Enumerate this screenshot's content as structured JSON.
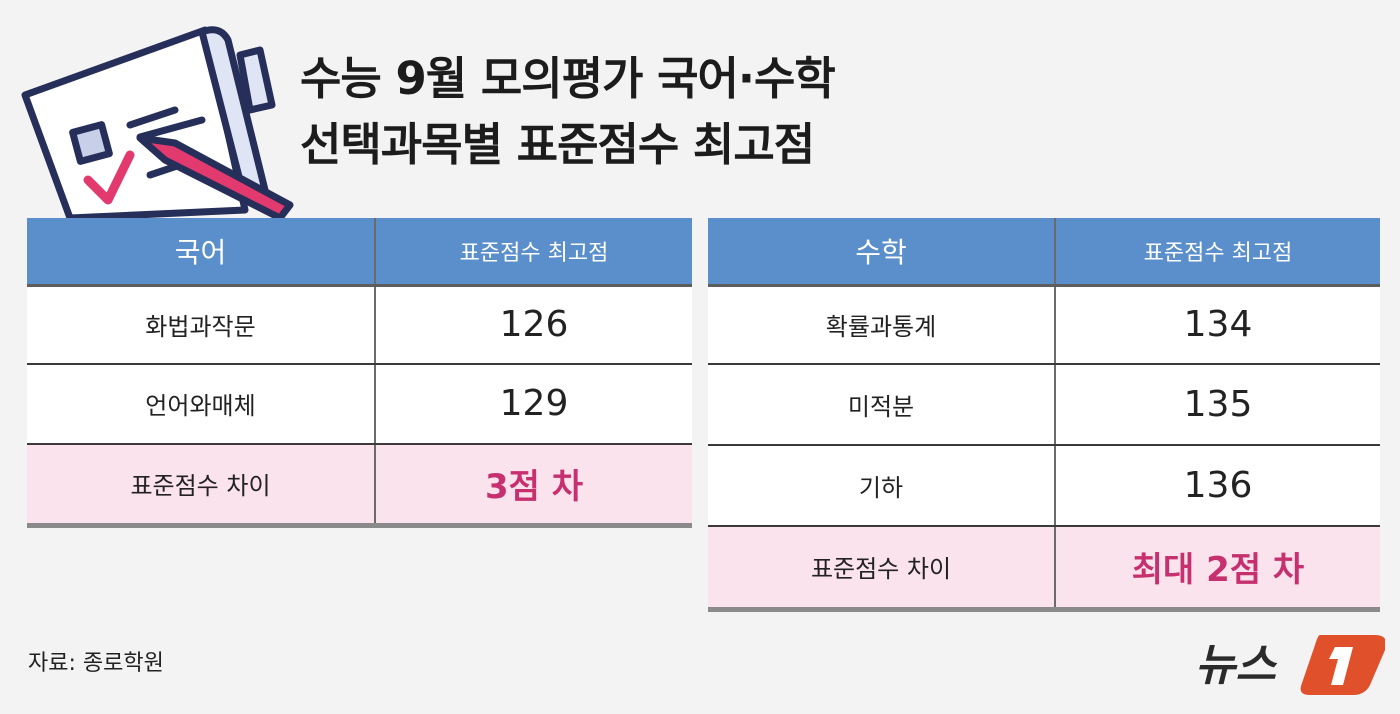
{
  "title": {
    "line1": "수능 9월 모의평가 국어·수학",
    "line2": "선택과목별 표준점수 최고점"
  },
  "chart_data": [
    {
      "type": "table",
      "columns": [
        "국어",
        "표준점수 최고점"
      ],
      "rows": [
        {
          "subject": "화법과작문",
          "score": "126"
        },
        {
          "subject": "언어와매체",
          "score": "129"
        }
      ],
      "diff": {
        "label": "표준점수 차이",
        "value": "3점 차"
      }
    },
    {
      "type": "table",
      "columns": [
        "수학",
        "표준점수 최고점"
      ],
      "rows": [
        {
          "subject": "확률과통계",
          "score": "134"
        },
        {
          "subject": "미적분",
          "score": "135"
        },
        {
          "subject": "기하",
          "score": "136"
        }
      ],
      "diff": {
        "label": "표준점수 차이",
        "value": "최대 2점 차"
      }
    }
  ],
  "source": "자료: 종로학원",
  "logo": "뉴스1",
  "colors": {
    "header": "#5b8fcc",
    "highlight_bg": "#fbe3ee",
    "highlight_text": "#c7306e",
    "logo": "#e0502a"
  },
  "icons": [
    "document-checklist-pencil-icon"
  ]
}
